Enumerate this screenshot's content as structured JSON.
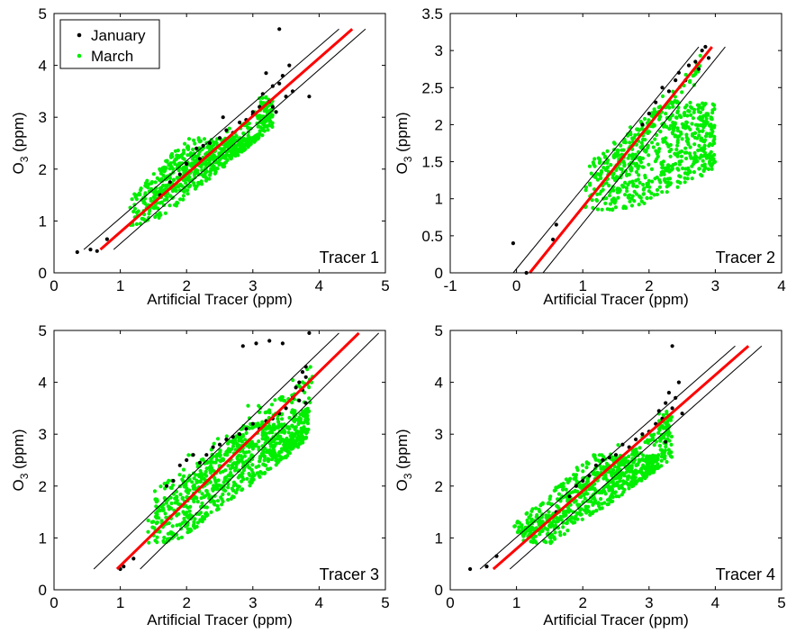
{
  "colors": {
    "january": "#000000",
    "march": "#00ee00",
    "fit": "#ff0000",
    "bounds": "#000000"
  },
  "legend": {
    "entries": [
      "January",
      "March"
    ],
    "placement": "top-left",
    "panel": 0
  },
  "chart_data": [
    {
      "type": "scatter",
      "panel_label": "Tracer 1",
      "xlabel": "Artificial Tracer (ppm)",
      "ylabel": "O3 (ppm)",
      "ylabel_main": "O",
      "ylabel_sub": "3",
      "ylabel_rest": " (ppm)",
      "xlim": [
        0,
        5
      ],
      "ylim": [
        0,
        5
      ],
      "xticks": [
        "0",
        "1",
        "2",
        "3",
        "4",
        "5"
      ],
      "yticks": [
        "0",
        "1",
        "2",
        "3",
        "4",
        "5"
      ],
      "grid": false,
      "series": [
        {
          "name": "January",
          "points": [
            [
              0.35,
              0.4
            ],
            [
              0.55,
              0.45
            ],
            [
              0.65,
              0.42
            ],
            [
              0.8,
              0.65
            ],
            [
              1.6,
              1.5
            ],
            [
              1.75,
              1.75
            ],
            [
              1.9,
              1.9
            ],
            [
              2.0,
              2.1
            ],
            [
              2.2,
              2.2
            ],
            [
              2.25,
              2.45
            ],
            [
              2.35,
              2.5
            ],
            [
              2.5,
              2.6
            ],
            [
              2.6,
              2.75
            ],
            [
              2.7,
              2.7
            ],
            [
              2.8,
              2.9
            ],
            [
              2.9,
              2.95
            ],
            [
              3.0,
              3.1
            ],
            [
              3.1,
              3.2
            ],
            [
              3.15,
              3.45
            ],
            [
              3.25,
              3.3
            ],
            [
              3.3,
              3.6
            ],
            [
              3.3,
              3.2
            ],
            [
              3.35,
              3.1
            ],
            [
              3.4,
              3.65
            ],
            [
              3.45,
              3.8
            ],
            [
              3.5,
              3.4
            ],
            [
              3.55,
              4.0
            ],
            [
              3.6,
              3.5
            ],
            [
              3.4,
              4.7
            ],
            [
              3.85,
              3.4
            ],
            [
              3.2,
              3.85
            ],
            [
              3.0,
              3.05
            ],
            [
              2.55,
              3.0
            ],
            [
              2.15,
              2.4
            ]
          ]
        },
        {
          "name": "March",
          "clusters": [
            {
              "x": [
                1.2,
                3.3
              ],
              "y": [
                0.9,
                2.6
              ],
              "n": 650,
              "shape": "wedge",
              "base_slope": 1.05,
              "base_off": -0.2,
              "top_x": 3.25,
              "top_y": 3.4
            },
            {
              "x": [
                1.5,
                3.3
              ],
              "y": [
                1.4,
                3.5
              ],
              "n": 160,
              "shape": "band",
              "slope": 1.0,
              "off": -0.15,
              "spread": 0.12
            }
          ]
        }
      ],
      "lines": {
        "fit": [
          [
            0.7,
            0.45
          ],
          [
            4.5,
            4.7
          ]
        ],
        "upper": [
          [
            0.45,
            0.45
          ],
          [
            4.3,
            4.7
          ]
        ],
        "lower": [
          [
            0.9,
            0.45
          ],
          [
            4.7,
            4.7
          ]
        ]
      }
    },
    {
      "type": "scatter",
      "panel_label": "Tracer 2",
      "xlabel": "Artificial Tracer (ppm)",
      "ylabel": "O3 (ppm)",
      "ylabel_main": "O",
      "ylabel_sub": "3",
      "ylabel_rest": " (ppm)",
      "xlim": [
        -1,
        4
      ],
      "ylim": [
        0,
        3.5
      ],
      "xticks": [
        "-1",
        "0",
        "1",
        "2",
        "3",
        "4"
      ],
      "yticks": [
        "0",
        "0.5",
        "1",
        "1.5",
        "2",
        "2.5",
        "3",
        "3.5"
      ],
      "grid": false,
      "series": [
        {
          "name": "January",
          "points": [
            [
              -0.05,
              0.4
            ],
            [
              0.15,
              0.0
            ],
            [
              0.6,
              0.65
            ],
            [
              0.55,
              0.45
            ],
            [
              1.9,
              2.0
            ],
            [
              2.0,
              2.15
            ],
            [
              2.1,
              2.3
            ],
            [
              2.2,
              2.5
            ],
            [
              2.3,
              2.45
            ],
            [
              2.4,
              2.6
            ],
            [
              2.45,
              2.7
            ],
            [
              2.55,
              2.6
            ],
            [
              2.6,
              2.8
            ],
            [
              2.7,
              2.85
            ],
            [
              2.75,
              2.75
            ],
            [
              2.8,
              3.0
            ],
            [
              2.85,
              3.05
            ],
            [
              2.9,
              2.9
            ]
          ]
        },
        {
          "name": "March",
          "clusters": [
            {
              "x": [
                1.05,
                3.0
              ],
              "y": [
                0.85,
                2.3
              ],
              "n": 600,
              "shape": "blob",
              "base_slope": 0.45,
              "base_off": 0.5,
              "top_x": 2.8,
              "top_y": 2.3
            },
            {
              "x": [
                1.2,
                2.8
              ],
              "y": [
                1.1,
                2.9
              ],
              "n": 90,
              "shape": "band",
              "slope": 1.0,
              "off": 0.0,
              "spread": 0.08
            }
          ]
        }
      ],
      "lines": {
        "fit": [
          [
            0.2,
            0.0
          ],
          [
            2.95,
            3.05
          ]
        ],
        "upper": [
          [
            -0.05,
            0.0
          ],
          [
            2.75,
            3.05
          ]
        ],
        "lower": [
          [
            0.4,
            0.0
          ],
          [
            3.15,
            3.05
          ]
        ]
      }
    },
    {
      "type": "scatter",
      "panel_label": "Tracer 3",
      "xlabel": "Artificial Tracer (ppm)",
      "ylabel": "O3 (ppm)",
      "ylabel_main": "O",
      "ylabel_sub": "3",
      "ylabel_rest": " (ppm)",
      "xlim": [
        0,
        5
      ],
      "ylim": [
        0,
        5
      ],
      "xticks": [
        "0",
        "1",
        "2",
        "3",
        "4",
        "5"
      ],
      "yticks": [
        "0",
        "1",
        "2",
        "3",
        "4",
        "5"
      ],
      "grid": false,
      "series": [
        {
          "name": "January",
          "points": [
            [
              1.0,
              0.4
            ],
            [
              1.05,
              0.45
            ],
            [
              1.2,
              0.6
            ],
            [
              1.7,
              2.0
            ],
            [
              1.8,
              2.1
            ],
            [
              1.9,
              2.4
            ],
            [
              2.0,
              2.5
            ],
            [
              2.1,
              2.6
            ],
            [
              2.2,
              2.45
            ],
            [
              2.3,
              2.6
            ],
            [
              2.4,
              2.75
            ],
            [
              2.5,
              2.8
            ],
            [
              2.6,
              2.9
            ],
            [
              2.7,
              2.95
            ],
            [
              2.8,
              3.0
            ],
            [
              2.9,
              3.1
            ],
            [
              3.0,
              3.2
            ],
            [
              3.1,
              3.1
            ],
            [
              3.2,
              3.25
            ],
            [
              3.3,
              3.3
            ],
            [
              3.4,
              3.4
            ],
            [
              3.5,
              3.5
            ],
            [
              3.6,
              3.7
            ],
            [
              3.65,
              3.9
            ],
            [
              3.7,
              4.0
            ],
            [
              3.75,
              4.2
            ],
            [
              3.8,
              4.3
            ],
            [
              3.8,
              3.6
            ],
            [
              3.85,
              4.95
            ],
            [
              3.05,
              4.75
            ],
            [
              3.25,
              4.8
            ],
            [
              3.45,
              4.75
            ],
            [
              2.85,
              4.7
            ],
            [
              3.8,
              4.1
            ],
            [
              3.75,
              3.85
            ],
            [
              3.7,
              3.65
            ]
          ]
        },
        {
          "name": "March",
          "clusters": [
            {
              "x": [
                1.45,
                3.85
              ],
              "y": [
                0.9,
                3.2
              ],
              "n": 700,
              "shape": "wedge",
              "base_slope": 1.0,
              "base_off": -0.5,
              "top_x": 3.75,
              "top_y": 3.5
            },
            {
              "x": [
                1.5,
                3.9
              ],
              "y": [
                1.5,
                4.0
              ],
              "n": 220,
              "shape": "band",
              "slope": 1.0,
              "off": 0.0,
              "spread": 0.25
            }
          ]
        }
      ],
      "lines": {
        "fit": [
          [
            0.95,
            0.4
          ],
          [
            4.6,
            4.95
          ]
        ],
        "upper": [
          [
            0.6,
            0.4
          ],
          [
            4.3,
            4.95
          ]
        ],
        "lower": [
          [
            1.3,
            0.4
          ],
          [
            4.9,
            4.95
          ]
        ]
      }
    },
    {
      "type": "scatter",
      "panel_label": "Tracer 4",
      "xlabel": "Artificial Tracer (ppm)",
      "ylabel": "O3 (ppm)",
      "ylabel_main": "O",
      "ylabel_sub": "3",
      "ylabel_rest": " (ppm)",
      "xlim": [
        0,
        5
      ],
      "ylim": [
        0,
        5
      ],
      "xticks": [
        "0",
        "1",
        "2",
        "3",
        "4",
        "5"
      ],
      "yticks": [
        "0",
        "1",
        "2",
        "3",
        "4",
        "5"
      ],
      "grid": false,
      "series": [
        {
          "name": "January",
          "points": [
            [
              0.3,
              0.4
            ],
            [
              0.55,
              0.45
            ],
            [
              0.7,
              0.65
            ],
            [
              1.6,
              1.5
            ],
            [
              1.8,
              1.8
            ],
            [
              1.9,
              2.0
            ],
            [
              2.0,
              2.1
            ],
            [
              2.1,
              2.2
            ],
            [
              2.2,
              2.4
            ],
            [
              2.3,
              2.5
            ],
            [
              2.4,
              2.55
            ],
            [
              2.5,
              2.6
            ],
            [
              2.6,
              2.8
            ],
            [
              2.7,
              2.75
            ],
            [
              2.8,
              2.9
            ],
            [
              2.9,
              3.0
            ],
            [
              3.0,
              3.05
            ],
            [
              3.1,
              3.2
            ],
            [
              3.15,
              3.45
            ],
            [
              3.2,
              3.3
            ],
            [
              3.25,
              3.6
            ],
            [
              3.3,
              3.8
            ],
            [
              3.35,
              3.5
            ],
            [
              3.4,
              3.7
            ],
            [
              3.45,
              4.0
            ],
            [
              3.35,
              4.7
            ],
            [
              3.5,
              3.4
            ],
            [
              3.25,
              2.85
            ]
          ]
        },
        {
          "name": "March",
          "clusters": [
            {
              "x": [
                1.0,
                3.35
              ],
              "y": [
                0.9,
                2.6
              ],
              "n": 650,
              "shape": "wedge",
              "base_slope": 0.9,
              "base_off": -0.05,
              "top_x": 3.3,
              "top_y": 3.4
            },
            {
              "x": [
                1.2,
                3.3
              ],
              "y": [
                1.1,
                3.4
              ],
              "n": 150,
              "shape": "band",
              "slope": 1.0,
              "off": -0.1,
              "spread": 0.12
            }
          ]
        }
      ],
      "lines": {
        "fit": [
          [
            0.65,
            0.4
          ],
          [
            4.5,
            4.7
          ]
        ],
        "upper": [
          [
            0.45,
            0.4
          ],
          [
            4.3,
            4.7
          ]
        ],
        "lower": [
          [
            0.9,
            0.4
          ],
          [
            4.7,
            4.7
          ]
        ]
      }
    }
  ]
}
